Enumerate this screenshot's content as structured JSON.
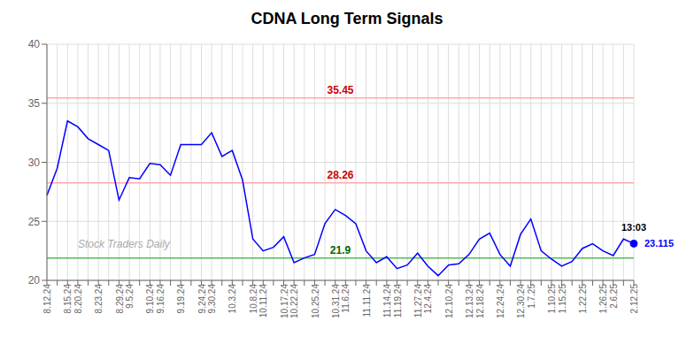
{
  "chart_data": {
    "type": "line",
    "title": "CDNA Long Term Signals",
    "color": "blue",
    "grid": true,
    "ylim": [
      20,
      40
    ],
    "yticks": [
      20,
      25,
      30,
      35,
      40
    ],
    "categories": [
      "8.12.24",
      null,
      "8.15.24",
      "8.20.24",
      null,
      "8.23.24",
      null,
      "8.29.24",
      "9.5.24",
      null,
      "9.10.24",
      "9.16.24",
      null,
      "9.19.24",
      null,
      "9.24.24",
      "9.30.24",
      null,
      "10.3.24",
      null,
      "10.8.24",
      "10.11.24",
      null,
      "10.17.24",
      "10.22.24",
      null,
      "10.25.24",
      null,
      "10.31.24",
      "11.6.24",
      null,
      "11.11.24",
      null,
      "11.14.24",
      "11.19.24",
      null,
      "11.27.24",
      "12.4.24",
      null,
      "12.10.24",
      null,
      "12.13.24",
      "12.18.24",
      null,
      "12.24.24",
      null,
      "12.30.24",
      "1.7.25",
      null,
      "1.10.25",
      "1.15.25",
      null,
      "1.22.25",
      null,
      "1.26.25",
      "2.6.25",
      null,
      "2.12.25"
    ],
    "values": [
      27.2,
      29.5,
      33.5,
      33.0,
      32.0,
      31.5,
      31.0,
      26.8,
      28.7,
      28.6,
      29.9,
      29.8,
      28.9,
      31.5,
      31.5,
      31.5,
      32.5,
      30.5,
      31.0,
      28.5,
      23.5,
      22.5,
      22.8,
      23.7,
      21.5,
      21.9,
      22.2,
      24.8,
      26.0,
      25.5,
      24.8,
      22.5,
      21.5,
      22.0,
      21.0,
      21.3,
      22.3,
      21.2,
      20.4,
      21.3,
      21.4,
      22.2,
      23.5,
      24.0,
      22.2,
      21.2,
      23.9,
      25.2,
      22.5,
      21.8,
      21.2,
      21.6,
      22.7,
      23.1,
      22.5,
      22.1,
      23.5,
      23.115
    ],
    "reference_lines": [
      {
        "y": 35.45,
        "label": "35.45",
        "color": "#ffaaaa",
        "label_color": "#cc0000"
      },
      {
        "y": 28.26,
        "label": "28.26",
        "color": "#ffaaaa",
        "label_color": "#cc0000"
      },
      {
        "y": 21.9,
        "label": "21.9",
        "color": "#55bb55",
        "label_color": "#006600"
      }
    ],
    "last_point": {
      "index": 57,
      "y": 23.115,
      "label": "13:03",
      "value_label": "23.115",
      "color": "blue"
    },
    "watermark": "Stock Traders Daily"
  }
}
